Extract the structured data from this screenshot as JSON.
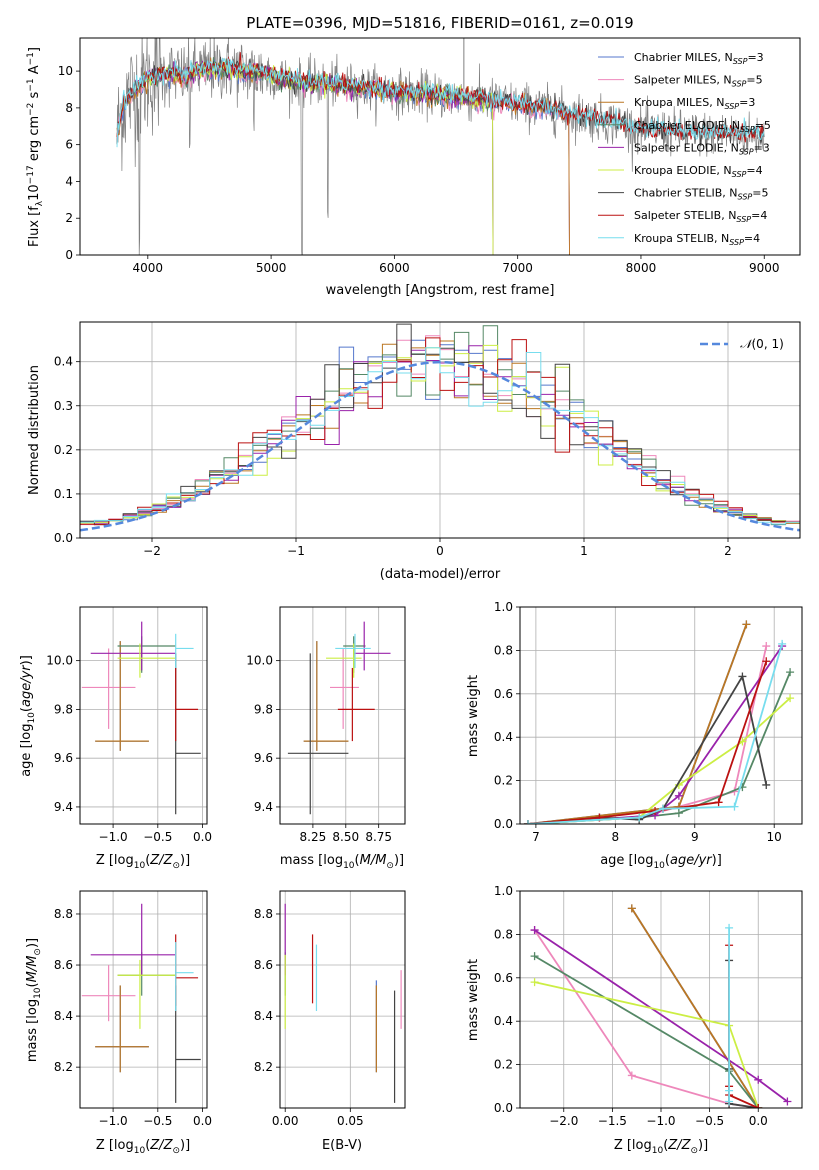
{
  "figure": {
    "title": "PLATE=0396, MJD=51816, FIBERID=0161, z=0.019"
  },
  "models": [
    {
      "label": "Chabrier MILES, N$_{SSP}$=3",
      "name": "Chabrier MILES",
      "nssp": 3,
      "color": "#5577cc"
    },
    {
      "label": "Salpeter MILES, N$_{SSP}$=5",
      "name": "Salpeter MILES",
      "nssp": 5,
      "color": "#ee88bb"
    },
    {
      "label": "Kroupa MILES, N$_{SSP}$=3",
      "name": "Kroupa MILES",
      "nssp": 3,
      "color": "#bb7722"
    },
    {
      "label": "Chabrier ELODIE, N$_{SSP}$=5",
      "name": "Chabrier ELODIE",
      "nssp": 5,
      "color": "#558866"
    },
    {
      "label": "Salpeter ELODIE, N$_{SSP}$=3",
      "name": "Salpeter ELODIE",
      "nssp": 3,
      "color": "#9922aa"
    },
    {
      "label": "Kroupa ELODIE, N$_{SSP}$=4",
      "name": "Kroupa ELODIE",
      "nssp": 4,
      "color": "#ccee44"
    },
    {
      "label": "Chabrier STELIB, N$_{SSP}$=5",
      "name": "Chabrier STELIB",
      "nssp": 5,
      "color": "#444444"
    },
    {
      "label": "Salpeter STELIB, N$_{SSP}$=4",
      "name": "Salpeter STELIB",
      "nssp": 4,
      "color": "#bb1111"
    },
    {
      "label": "Kroupa STELIB, N$_{SSP}$=4",
      "name": "Kroupa STELIB",
      "nssp": 4,
      "color": "#77ddee"
    }
  ],
  "legend_text": [
    "Chabrier MILES, N",
    "Salpeter MILES, N",
    "Kroupa MILES, N",
    "Chabrier ELODIE, N",
    "Salpeter ELODIE, N",
    "Kroupa ELODIE, N",
    "Chabrier STELIB, N",
    "Salpeter STELIB, N",
    "Kroupa STELIB, N"
  ],
  "legend_sub": "SSP",
  "legend_nssp": [
    "=3",
    "=5",
    "=3",
    "=5",
    "=3",
    "=4",
    "=5",
    "=4",
    "=4"
  ],
  "chart_data": [
    {
      "id": "spectrum",
      "type": "line",
      "xlabel": "wavelength [Angstrom, rest frame]",
      "ylabel": "Flux [f$_\\lambda$10$^{-17}$ erg cm$^{-2}$ s$^{-1}$ A$^{-1}$]",
      "ylabel_parts": [
        "Flux [f",
        "λ",
        "10",
        "−17",
        " erg cm",
        "−2",
        " s",
        "−1",
        " A",
        "−1",
        "]"
      ],
      "xlim": [
        3450,
        9290
      ],
      "ylim": [
        0,
        11.8
      ],
      "xticks": [
        4000,
        5000,
        6000,
        7000,
        8000,
        9000
      ],
      "yticks": [
        0,
        2,
        4,
        6,
        8,
        10
      ],
      "grid": false,
      "legend_loc": "upper right",
      "observed_range": [
        3750,
        9000
      ],
      "continuum_points": [
        [
          3750,
          6.5
        ],
        [
          3800,
          8.2
        ],
        [
          3900,
          9.0
        ],
        [
          4000,
          9.6
        ],
        [
          4100,
          9.8
        ],
        [
          4200,
          9.9
        ],
        [
          4300,
          9.7
        ],
        [
          4400,
          10.0
        ],
        [
          4600,
          10.2
        ],
        [
          4800,
          10.0
        ],
        [
          5000,
          9.8
        ],
        [
          5200,
          9.4
        ],
        [
          5500,
          9.3
        ],
        [
          6000,
          8.9
        ],
        [
          6500,
          8.6
        ],
        [
          7000,
          8.2
        ],
        [
          7200,
          8.0
        ],
        [
          7500,
          7.6
        ],
        [
          7800,
          7.2
        ],
        [
          8000,
          6.8
        ],
        [
          8500,
          6.6
        ],
        [
          9000,
          6.5
        ]
      ],
      "absorption_features": [
        {
          "x": 3933,
          "depth": 9.0
        },
        {
          "x": 4340,
          "depth": 4.5
        },
        {
          "x": 4861,
          "depth": 3.0
        },
        {
          "x": 5250,
          "depth": 9.5
        },
        {
          "x": 5460,
          "depth": 7.5
        }
      ],
      "model_cutoffs": [
        {
          "model": "Kroupa ELODIE",
          "start": 3900,
          "end": 6800
        },
        {
          "model": "Salpeter ELODIE",
          "start": 3900,
          "end": 6800
        },
        {
          "model": "Chabrier ELODIE",
          "start": 3900,
          "end": 6800
        },
        {
          "model": "Kroupa MILES",
          "start": 3750,
          "end": 7420
        },
        {
          "model": "Salpeter MILES",
          "start": 3750,
          "end": 7420
        },
        {
          "model": "Chabrier MILES",
          "start": 3750,
          "end": 7420
        }
      ]
    },
    {
      "id": "residual-histogram",
      "type": "bar",
      "xlabel": "(data-model)/error",
      "ylabel": "Normed distribution",
      "xlim": [
        -2.5,
        2.5
      ],
      "ylim": [
        0,
        0.49
      ],
      "xticks": [
        -2,
        -1,
        0,
        1,
        2
      ],
      "yticks": [
        0.0,
        0.1,
        0.2,
        0.3,
        0.4
      ],
      "grid": true,
      "legend_loc": "upper right",
      "reference": {
        "label": "N(0,1)",
        "label_prefix": "𝒩",
        "label_suffix": "(0, 1)",
        "mean": 0,
        "sigma": 1,
        "color": "#5588dd"
      },
      "bin_width": 0.1
    },
    {
      "id": "age-vs-Z",
      "type": "scatter",
      "xlabel": "Z [log$_{10}$(Z/Z$_\\odot$)]",
      "ylabel": "age  [log$_{10}$(age/yr)]",
      "xlim": [
        -1.37,
        0.05
      ],
      "ylim": [
        9.33,
        10.22
      ],
      "xticks": [
        -1.0,
        -0.5,
        0.0
      ],
      "yticks": [
        9.4,
        9.6,
        9.8,
        10.0
      ],
      "grid": true
    },
    {
      "id": "age-vs-mass",
      "type": "scatter",
      "xlabel": "mass [log$_{10}$(M/M$_\\odot$)]",
      "xlim": [
        8.0,
        8.95
      ],
      "ylim": [
        9.33,
        10.22
      ],
      "xticks": [
        8.25,
        8.5,
        8.75
      ],
      "yticks": [
        9.4,
        9.6,
        9.8,
        10.0
      ],
      "grid": true
    },
    {
      "id": "massweight-vs-age",
      "type": "line",
      "xlabel": "age  [log$_{10}$(age/yr)]",
      "ylabel": "mass weight",
      "xlim": [
        6.8,
        10.35
      ],
      "ylim": [
        0,
        1.0
      ],
      "xticks": [
        7,
        8,
        9,
        10
      ],
      "yticks": [
        0.0,
        0.2,
        0.4,
        0.6,
        0.8,
        1.0
      ],
      "grid": true,
      "series": [
        {
          "model": "Chabrier MILES",
          "x": [
            6.9,
            8.8,
            9.65
          ],
          "y": [
            0.0,
            0.08,
            0.92
          ]
        },
        {
          "model": "Salpeter MILES",
          "x": [
            6.9,
            8.3,
            9.5,
            9.9
          ],
          "y": [
            0.0,
            0.03,
            0.15,
            0.82
          ]
        },
        {
          "model": "Kroupa MILES",
          "x": [
            6.9,
            8.8,
            9.65
          ],
          "y": [
            0.0,
            0.08,
            0.92
          ]
        },
        {
          "model": "Chabrier ELODIE",
          "x": [
            6.9,
            8.3,
            8.8,
            9.6,
            10.2
          ],
          "y": [
            0.0,
            0.03,
            0.05,
            0.17,
            0.7
          ]
        },
        {
          "model": "Salpeter ELODIE",
          "x": [
            6.9,
            8.5,
            8.8,
            10.1
          ],
          "y": [
            0.0,
            0.04,
            0.13,
            0.82
          ]
        },
        {
          "model": "Kroupa ELODIE",
          "x": [
            6.9,
            8.3,
            8.8,
            9.6,
            10.2
          ],
          "y": [
            0.0,
            0.03,
            0.18,
            0.38,
            0.58
          ]
        },
        {
          "model": "Chabrier STELIB",
          "x": [
            6.9,
            7.8,
            8.3,
            8.6,
            9.6,
            9.9
          ],
          "y": [
            0.0,
            0.03,
            0.02,
            0.07,
            0.68,
            0.18
          ]
        },
        {
          "model": "Salpeter STELIB",
          "x": [
            6.9,
            7.8,
            8.5,
            9.3,
            9.9
          ],
          "y": [
            0.0,
            0.03,
            0.06,
            0.1,
            0.75
          ]
        },
        {
          "model": "Kroupa STELIB",
          "x": [
            6.9,
            8.3,
            8.6,
            9.5,
            10.1
          ],
          "y": [
            0.0,
            0.03,
            0.07,
            0.08,
            0.83
          ]
        }
      ]
    },
    {
      "id": "mass-vs-Z",
      "type": "scatter",
      "xlabel": "Z [log$_{10}$(Z/Z$_\\odot$)]",
      "ylabel": "mass [log$_{10}$(M/M$_\\odot$)]",
      "xlim": [
        -1.37,
        0.05
      ],
      "ylim": [
        8.04,
        8.89
      ],
      "xticks": [
        -1.0,
        -0.5,
        0.0
      ],
      "yticks": [
        8.2,
        8.4,
        8.6,
        8.8
      ],
      "grid": true
    },
    {
      "id": "mass-vs-EBV",
      "type": "scatter",
      "xlabel": "E(B-V)",
      "xlim": [
        -0.004,
        0.092
      ],
      "ylim": [
        8.04,
        8.89
      ],
      "xticks": [
        0.0,
        0.05
      ],
      "yticks": [
        8.2,
        8.4,
        8.6,
        8.8
      ],
      "grid": true
    },
    {
      "id": "massweight-vs-Z",
      "type": "line",
      "xlabel": "Z [log$_{10}$(Z/Z$_\\odot$)]",
      "ylabel": "mass weight",
      "xlim": [
        -2.45,
        0.45
      ],
      "ylim": [
        0,
        1.0
      ],
      "xticks": [
        -2.0,
        -1.5,
        -1.0,
        -0.5,
        0.0
      ],
      "yticks": [
        0.0,
        0.2,
        0.4,
        0.6,
        0.8,
        1.0
      ],
      "grid": true,
      "series": [
        {
          "model": "Chabrier MILES",
          "x": [
            -1.3,
            0.0
          ],
          "y": [
            0.92,
            0.0
          ]
        },
        {
          "model": "Salpeter MILES",
          "x": [
            -2.3,
            -1.3,
            -0.3,
            0.0
          ],
          "y": [
            0.82,
            0.15,
            0.02,
            0.0
          ]
        },
        {
          "model": "Kroupa MILES",
          "x": [
            -1.3,
            0.0
          ],
          "y": [
            0.92,
            0.0
          ]
        },
        {
          "model": "Chabrier ELODIE",
          "x": [
            -2.3,
            -0.3,
            0.0
          ],
          "y": [
            0.7,
            0.17,
            0.0
          ]
        },
        {
          "model": "Salpeter ELODIE",
          "x": [
            -2.3,
            0.0,
            0.3
          ],
          "y": [
            0.82,
            0.13,
            0.03
          ]
        },
        {
          "model": "Kroupa ELODIE",
          "x": [
            -2.3,
            -0.3,
            0.0
          ],
          "y": [
            0.58,
            0.38,
            0.0
          ]
        },
        {
          "model": "Chabrier STELIB",
          "x": [
            -0.3,
            -0.3,
            -0.3,
            0.0
          ],
          "y": [
            0.68,
            0.18,
            0.02,
            0.0
          ]
        },
        {
          "model": "Salpeter STELIB",
          "x": [
            -0.3,
            -0.3,
            -0.3,
            0.0
          ],
          "y": [
            0.75,
            0.1,
            0.06,
            0.0
          ]
        },
        {
          "model": "Kroupa STELIB",
          "x": [
            -0.3,
            -0.3,
            -0.3
          ],
          "y": [
            0.83,
            0.08,
            0.03
          ]
        }
      ]
    }
  ],
  "model_points": [
    {
      "model": "Chabrier MILES",
      "Z": -0.92,
      "Z_err": [
        -1.2,
        -0.6
      ],
      "age": 9.67,
      "age_err": [
        9.63,
        10.08
      ],
      "mass": 8.28,
      "mass_err": [
        8.18,
        8.52
      ],
      "ebv": 0.07,
      "ebv_err": [
        8.18,
        8.54
      ]
    },
    {
      "model": "Salpeter MILES",
      "Z": -1.05,
      "Z_err": [
        -1.35,
        -0.75
      ],
      "age": 9.89,
      "age_err": [
        9.72,
        10.05
      ],
      "mass": 8.48,
      "mass_err": [
        8.38,
        8.6
      ],
      "ebv": 0.089,
      "ebv_err": [
        8.35,
        8.58
      ]
    },
    {
      "model": "Kroupa MILES",
      "Z": -0.92,
      "Z_err": [
        -1.2,
        -0.6
      ],
      "age": 9.67,
      "age_err": [
        9.63,
        10.08
      ],
      "mass": 8.28,
      "mass_err": [
        8.18,
        8.52
      ],
      "ebv": 0.07,
      "ebv_err": [
        8.18,
        8.52
      ]
    },
    {
      "model": "Chabrier ELODIE",
      "Z": -0.68,
      "Z_err": [
        -0.95,
        -0.3
      ],
      "age": 10.06,
      "age_err": [
        9.95,
        10.1
      ],
      "mass": 8.56,
      "mass_err": [
        8.48,
        8.65
      ],
      "ebv": 0.0,
      "ebv_err": [
        8.48,
        8.65
      ]
    },
    {
      "model": "Salpeter ELODIE",
      "Z": -0.68,
      "Z_err": [
        -1.25,
        -0.3
      ],
      "age": 10.03,
      "age_err": [
        9.96,
        10.16
      ],
      "mass": 8.64,
      "mass_err": [
        8.56,
        8.84
      ],
      "ebv": 0.0,
      "ebv_err": [
        8.56,
        8.84
      ]
    },
    {
      "model": "Kroupa ELODIE",
      "Z": -0.7,
      "Z_err": [
        -0.95,
        -0.3
      ],
      "age": 10.01,
      "age_err": [
        9.93,
        10.07
      ],
      "mass": 8.56,
      "mass_err": [
        8.35,
        8.62
      ],
      "ebv": 0.0,
      "ebv_err": [
        8.35,
        8.64
      ]
    },
    {
      "model": "Chabrier STELIB",
      "Z": -0.3,
      "Z_err": [
        -0.3,
        -0.02
      ],
      "age": 9.62,
      "age_err": [
        9.37,
        10.03
      ],
      "mass": 8.23,
      "mass_err": [
        8.06,
        8.52
      ],
      "ebv": 0.084,
      "ebv_err": [
        8.06,
        8.5
      ]
    },
    {
      "model": "Salpeter STELIB",
      "Z": -0.3,
      "Z_err": [
        -0.3,
        -0.05
      ],
      "age": 9.8,
      "age_err": [
        9.67,
        9.97
      ],
      "mass": 8.55,
      "mass_err": [
        8.44,
        8.72
      ],
      "ebv": 0.021,
      "ebv_err": [
        8.45,
        8.72
      ]
    },
    {
      "model": "Kroupa STELIB",
      "Z": -0.3,
      "Z_err": [
        -0.3,
        -0.1
      ],
      "age": 10.05,
      "age_err": [
        9.97,
        10.11
      ],
      "mass": 8.57,
      "mass_err": [
        8.42,
        8.69
      ],
      "ebv": 0.024,
      "ebv_err": [
        8.42,
        8.68
      ]
    }
  ]
}
